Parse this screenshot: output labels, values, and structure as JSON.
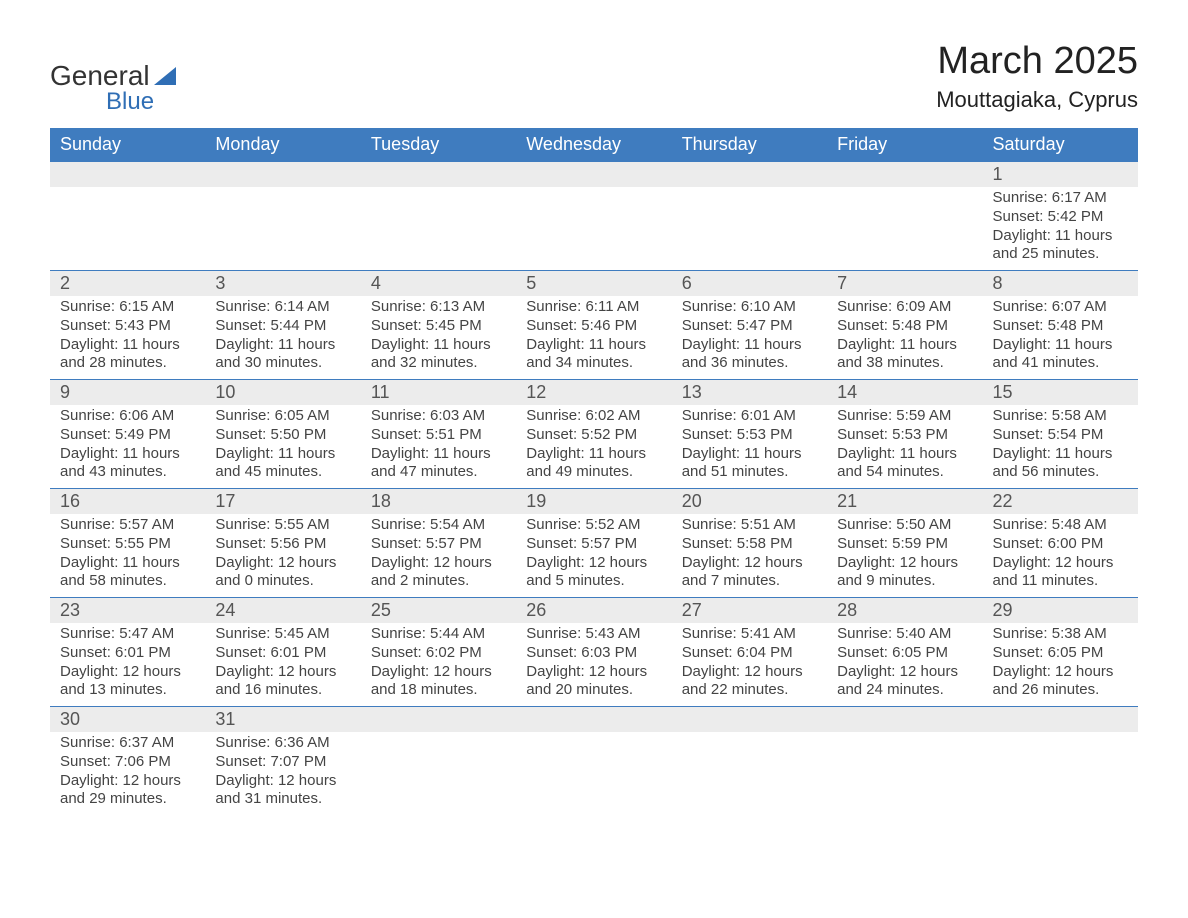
{
  "logo": {
    "part1": "General",
    "part2": "Blue"
  },
  "title": "March 2025",
  "location": "Mouttagiaka, Cyprus",
  "colors": {
    "header_bg": "#3f7cbf",
    "header_fg": "#ffffff",
    "daynum_bg": "#ececec",
    "border": "#3f7cbf",
    "text": "#444444",
    "logo_blue": "#2f6eb5"
  },
  "dayHeaders": [
    "Sunday",
    "Monday",
    "Tuesday",
    "Wednesday",
    "Thursday",
    "Friday",
    "Saturday"
  ],
  "weeks": [
    [
      null,
      null,
      null,
      null,
      null,
      null,
      {
        "n": "1",
        "sunrise": "6:17 AM",
        "sunset": "5:42 PM",
        "dl1": "11 hours",
        "dl2": "and 25 minutes."
      }
    ],
    [
      {
        "n": "2",
        "sunrise": "6:15 AM",
        "sunset": "5:43 PM",
        "dl1": "11 hours",
        "dl2": "and 28 minutes."
      },
      {
        "n": "3",
        "sunrise": "6:14 AM",
        "sunset": "5:44 PM",
        "dl1": "11 hours",
        "dl2": "and 30 minutes."
      },
      {
        "n": "4",
        "sunrise": "6:13 AM",
        "sunset": "5:45 PM",
        "dl1": "11 hours",
        "dl2": "and 32 minutes."
      },
      {
        "n": "5",
        "sunrise": "6:11 AM",
        "sunset": "5:46 PM",
        "dl1": "11 hours",
        "dl2": "and 34 minutes."
      },
      {
        "n": "6",
        "sunrise": "6:10 AM",
        "sunset": "5:47 PM",
        "dl1": "11 hours",
        "dl2": "and 36 minutes."
      },
      {
        "n": "7",
        "sunrise": "6:09 AM",
        "sunset": "5:48 PM",
        "dl1": "11 hours",
        "dl2": "and 38 minutes."
      },
      {
        "n": "8",
        "sunrise": "6:07 AM",
        "sunset": "5:48 PM",
        "dl1": "11 hours",
        "dl2": "and 41 minutes."
      }
    ],
    [
      {
        "n": "9",
        "sunrise": "6:06 AM",
        "sunset": "5:49 PM",
        "dl1": "11 hours",
        "dl2": "and 43 minutes."
      },
      {
        "n": "10",
        "sunrise": "6:05 AM",
        "sunset": "5:50 PM",
        "dl1": "11 hours",
        "dl2": "and 45 minutes."
      },
      {
        "n": "11",
        "sunrise": "6:03 AM",
        "sunset": "5:51 PM",
        "dl1": "11 hours",
        "dl2": "and 47 minutes."
      },
      {
        "n": "12",
        "sunrise": "6:02 AM",
        "sunset": "5:52 PM",
        "dl1": "11 hours",
        "dl2": "and 49 minutes."
      },
      {
        "n": "13",
        "sunrise": "6:01 AM",
        "sunset": "5:53 PM",
        "dl1": "11 hours",
        "dl2": "and 51 minutes."
      },
      {
        "n": "14",
        "sunrise": "5:59 AM",
        "sunset": "5:53 PM",
        "dl1": "11 hours",
        "dl2": "and 54 minutes."
      },
      {
        "n": "15",
        "sunrise": "5:58 AM",
        "sunset": "5:54 PM",
        "dl1": "11 hours",
        "dl2": "and 56 minutes."
      }
    ],
    [
      {
        "n": "16",
        "sunrise": "5:57 AM",
        "sunset": "5:55 PM",
        "dl1": "11 hours",
        "dl2": "and 58 minutes."
      },
      {
        "n": "17",
        "sunrise": "5:55 AM",
        "sunset": "5:56 PM",
        "dl1": "12 hours",
        "dl2": "and 0 minutes."
      },
      {
        "n": "18",
        "sunrise": "5:54 AM",
        "sunset": "5:57 PM",
        "dl1": "12 hours",
        "dl2": "and 2 minutes."
      },
      {
        "n": "19",
        "sunrise": "5:52 AM",
        "sunset": "5:57 PM",
        "dl1": "12 hours",
        "dl2": "and 5 minutes."
      },
      {
        "n": "20",
        "sunrise": "5:51 AM",
        "sunset": "5:58 PM",
        "dl1": "12 hours",
        "dl2": "and 7 minutes."
      },
      {
        "n": "21",
        "sunrise": "5:50 AM",
        "sunset": "5:59 PM",
        "dl1": "12 hours",
        "dl2": "and 9 minutes."
      },
      {
        "n": "22",
        "sunrise": "5:48 AM",
        "sunset": "6:00 PM",
        "dl1": "12 hours",
        "dl2": "and 11 minutes."
      }
    ],
    [
      {
        "n": "23",
        "sunrise": "5:47 AM",
        "sunset": "6:01 PM",
        "dl1": "12 hours",
        "dl2": "and 13 minutes."
      },
      {
        "n": "24",
        "sunrise": "5:45 AM",
        "sunset": "6:01 PM",
        "dl1": "12 hours",
        "dl2": "and 16 minutes."
      },
      {
        "n": "25",
        "sunrise": "5:44 AM",
        "sunset": "6:02 PM",
        "dl1": "12 hours",
        "dl2": "and 18 minutes."
      },
      {
        "n": "26",
        "sunrise": "5:43 AM",
        "sunset": "6:03 PM",
        "dl1": "12 hours",
        "dl2": "and 20 minutes."
      },
      {
        "n": "27",
        "sunrise": "5:41 AM",
        "sunset": "6:04 PM",
        "dl1": "12 hours",
        "dl2": "and 22 minutes."
      },
      {
        "n": "28",
        "sunrise": "5:40 AM",
        "sunset": "6:05 PM",
        "dl1": "12 hours",
        "dl2": "and 24 minutes."
      },
      {
        "n": "29",
        "sunrise": "5:38 AM",
        "sunset": "6:05 PM",
        "dl1": "12 hours",
        "dl2": "and 26 minutes."
      }
    ],
    [
      {
        "n": "30",
        "sunrise": "6:37 AM",
        "sunset": "7:06 PM",
        "dl1": "12 hours",
        "dl2": "and 29 minutes."
      },
      {
        "n": "31",
        "sunrise": "6:36 AM",
        "sunset": "7:07 PM",
        "dl1": "12 hours",
        "dl2": "and 31 minutes."
      },
      null,
      null,
      null,
      null,
      null
    ]
  ],
  "labels": {
    "sunrise": "Sunrise: ",
    "sunset": "Sunset: ",
    "daylight": "Daylight: "
  }
}
